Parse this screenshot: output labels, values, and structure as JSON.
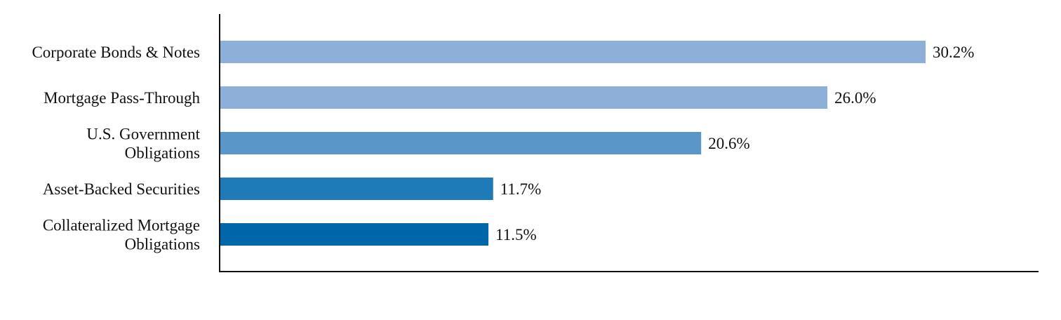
{
  "chart_data": {
    "type": "bar",
    "orientation": "horizontal",
    "categories": [
      [
        "Corporate Bonds & Notes"
      ],
      [
        "Mortgage Pass-Through"
      ],
      [
        "U.S. Government",
        "Obligations"
      ],
      [
        "Asset-Backed Securities"
      ],
      [
        "Collateralized Mortgage",
        "Obligations"
      ]
    ],
    "values": [
      30.2,
      26.0,
      20.6,
      11.7,
      11.5
    ],
    "value_labels": [
      "30.2%",
      "26.0%",
      "20.6%",
      "11.7%",
      "11.5%"
    ],
    "colors": [
      "#8eafd8",
      "#8eafd8",
      "#5a96c8",
      "#1e7bb8",
      "#0066aa"
    ],
    "unit": "%",
    "title": "",
    "xlabel": "",
    "ylabel": "",
    "xlim": [
      0,
      35
    ],
    "grid": false,
    "legend": "none"
  }
}
